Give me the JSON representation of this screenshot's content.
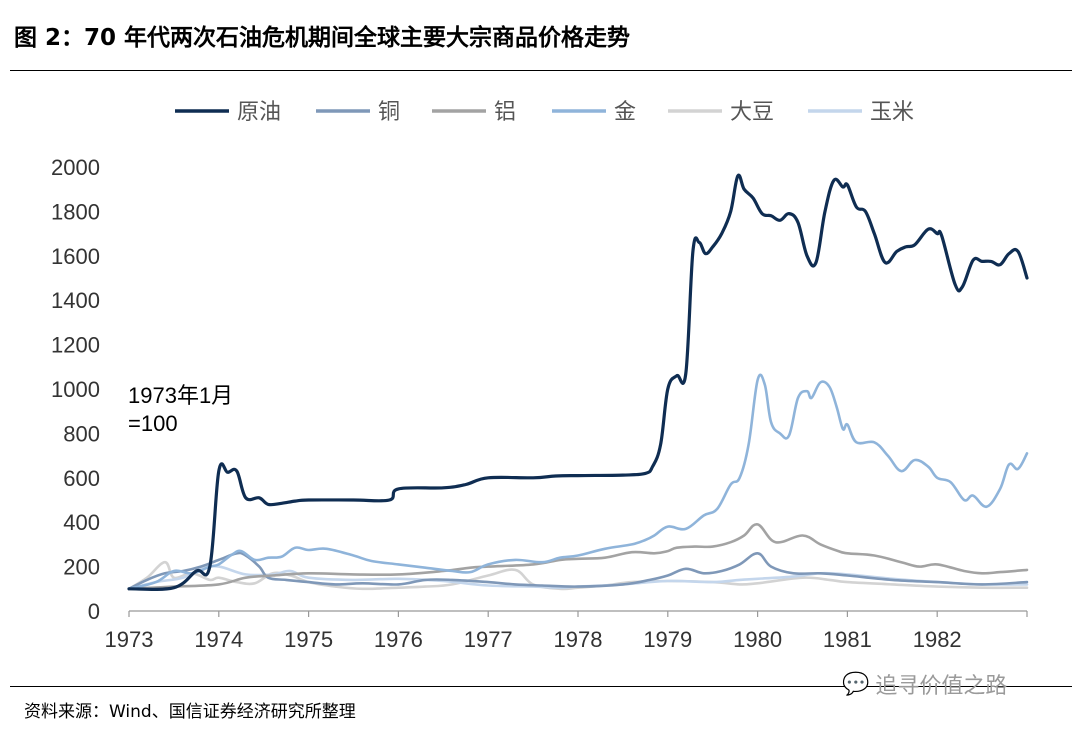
{
  "header": {
    "title": "图 2：70 年代两次石油危机期间全球主要大宗商品价格走势"
  },
  "footer": {
    "source": "资料来源：Wind、国信证券经济研究所整理",
    "watermark": "追寻价值之路",
    "watermark_icon": "wechat-icon"
  },
  "annotation": {
    "line1": "1973年1月",
    "line2": "=100"
  },
  "chart_data": {
    "type": "line",
    "title": "",
    "xlabel": "",
    "ylabel": "",
    "xlim": [
      1973,
      1983
    ],
    "ylim": [
      0,
      2000
    ],
    "x_ticks": [
      "1973",
      "1974",
      "1975",
      "1976",
      "1977",
      "1978",
      "1979",
      "1980",
      "1981",
      "1982"
    ],
    "y_ticks": [
      "0",
      "200",
      "400",
      "600",
      "800",
      "1000",
      "1200",
      "1400",
      "1600",
      "1800",
      "2000"
    ],
    "grid": false,
    "legend_position": "top",
    "series": [
      {
        "name": "原油",
        "color": "#0f2d52",
        "points": [
          [
            1973.0,
            100
          ],
          [
            1973.5,
            105
          ],
          [
            1973.75,
            180
          ],
          [
            1973.9,
            200
          ],
          [
            1974.0,
            630
          ],
          [
            1974.1,
            625
          ],
          [
            1974.2,
            630
          ],
          [
            1974.3,
            510
          ],
          [
            1974.45,
            510
          ],
          [
            1974.55,
            480
          ],
          [
            1974.7,
            485
          ],
          [
            1974.85,
            495
          ],
          [
            1975.0,
            500
          ],
          [
            1975.5,
            500
          ],
          [
            1975.9,
            500
          ],
          [
            1976.0,
            550
          ],
          [
            1976.5,
            555
          ],
          [
            1976.75,
            570
          ],
          [
            1977.0,
            600
          ],
          [
            1977.5,
            600
          ],
          [
            1977.75,
            608
          ],
          [
            1978.0,
            610
          ],
          [
            1978.5,
            612
          ],
          [
            1978.75,
            620
          ],
          [
            1978.83,
            650
          ],
          [
            1978.92,
            750
          ],
          [
            1979.0,
            1000
          ],
          [
            1979.1,
            1060
          ],
          [
            1979.2,
            1070
          ],
          [
            1979.28,
            1620
          ],
          [
            1979.35,
            1660
          ],
          [
            1979.42,
            1610
          ],
          [
            1979.5,
            1640
          ],
          [
            1979.6,
            1700
          ],
          [
            1979.7,
            1800
          ],
          [
            1979.78,
            1960
          ],
          [
            1979.85,
            1900
          ],
          [
            1979.95,
            1860
          ],
          [
            1980.05,
            1790
          ],
          [
            1980.15,
            1780
          ],
          [
            1980.25,
            1760
          ],
          [
            1980.35,
            1790
          ],
          [
            1980.45,
            1750
          ],
          [
            1980.55,
            1600
          ],
          [
            1980.65,
            1570
          ],
          [
            1980.75,
            1800
          ],
          [
            1980.85,
            1940
          ],
          [
            1980.95,
            1910
          ],
          [
            1981.0,
            1920
          ],
          [
            1981.1,
            1820
          ],
          [
            1981.2,
            1800
          ],
          [
            1981.3,
            1700
          ],
          [
            1981.42,
            1570
          ],
          [
            1981.55,
            1620
          ],
          [
            1981.65,
            1640
          ],
          [
            1981.75,
            1650
          ],
          [
            1981.9,
            1720
          ],
          [
            1982.0,
            1700
          ],
          [
            1982.05,
            1690
          ],
          [
            1982.2,
            1470
          ],
          [
            1982.28,
            1460
          ],
          [
            1982.4,
            1580
          ],
          [
            1982.5,
            1575
          ],
          [
            1982.6,
            1575
          ],
          [
            1982.7,
            1560
          ],
          [
            1982.8,
            1610
          ],
          [
            1982.9,
            1620
          ],
          [
            1983.0,
            1500
          ]
        ]
      },
      {
        "name": "铜",
        "color": "#7f98b8",
        "points": [
          [
            1973.0,
            100
          ],
          [
            1973.2,
            140
          ],
          [
            1973.4,
            170
          ],
          [
            1973.6,
            180
          ],
          [
            1973.8,
            200
          ],
          [
            1974.0,
            230
          ],
          [
            1974.2,
            260
          ],
          [
            1974.3,
            250
          ],
          [
            1974.45,
            200
          ],
          [
            1974.55,
            150
          ],
          [
            1974.75,
            140
          ],
          [
            1975.0,
            130
          ],
          [
            1975.3,
            120
          ],
          [
            1975.6,
            125
          ],
          [
            1976.0,
            120
          ],
          [
            1976.3,
            140
          ],
          [
            1976.6,
            140
          ],
          [
            1977.0,
            130
          ],
          [
            1977.3,
            120
          ],
          [
            1977.6,
            115
          ],
          [
            1978.0,
            110
          ],
          [
            1978.5,
            120
          ],
          [
            1978.8,
            140
          ],
          [
            1979.0,
            160
          ],
          [
            1979.2,
            190
          ],
          [
            1979.4,
            170
          ],
          [
            1979.6,
            180
          ],
          [
            1979.8,
            210
          ],
          [
            1980.0,
            260
          ],
          [
            1980.15,
            200
          ],
          [
            1980.4,
            170
          ],
          [
            1980.7,
            170
          ],
          [
            1981.0,
            160
          ],
          [
            1981.5,
            140
          ],
          [
            1982.0,
            130
          ],
          [
            1982.5,
            120
          ],
          [
            1983.0,
            130
          ]
        ]
      },
      {
        "name": "铝",
        "color": "#a3a3a3",
        "points": [
          [
            1973.0,
            100
          ],
          [
            1973.5,
            110
          ],
          [
            1974.0,
            120
          ],
          [
            1974.3,
            150
          ],
          [
            1974.6,
            160
          ],
          [
            1975.0,
            170
          ],
          [
            1975.5,
            165
          ],
          [
            1976.0,
            165
          ],
          [
            1976.5,
            180
          ],
          [
            1976.8,
            195
          ],
          [
            1977.0,
            200
          ],
          [
            1977.5,
            210
          ],
          [
            1977.8,
            230
          ],
          [
            1978.0,
            235
          ],
          [
            1978.3,
            240
          ],
          [
            1978.6,
            265
          ],
          [
            1978.85,
            260
          ],
          [
            1979.0,
            270
          ],
          [
            1979.1,
            285
          ],
          [
            1979.3,
            290
          ],
          [
            1979.5,
            290
          ],
          [
            1979.7,
            310
          ],
          [
            1979.85,
            340
          ],
          [
            1980.0,
            390
          ],
          [
            1980.2,
            310
          ],
          [
            1980.5,
            340
          ],
          [
            1980.7,
            300
          ],
          [
            1980.9,
            270
          ],
          [
            1981.0,
            260
          ],
          [
            1981.3,
            250
          ],
          [
            1981.6,
            220
          ],
          [
            1981.8,
            200
          ],
          [
            1982.0,
            210
          ],
          [
            1982.3,
            180
          ],
          [
            1982.5,
            170
          ],
          [
            1982.7,
            175
          ],
          [
            1983.0,
            185
          ]
        ]
      },
      {
        "name": "金",
        "color": "#8fb4da",
        "points": [
          [
            1973.0,
            100
          ],
          [
            1973.3,
            130
          ],
          [
            1973.5,
            180
          ],
          [
            1973.7,
            170
          ],
          [
            1973.9,
            200
          ],
          [
            1974.0,
            210
          ],
          [
            1974.15,
            255
          ],
          [
            1974.25,
            270
          ],
          [
            1974.4,
            230
          ],
          [
            1974.55,
            240
          ],
          [
            1974.7,
            245
          ],
          [
            1974.85,
            285
          ],
          [
            1975.0,
            275
          ],
          [
            1975.2,
            280
          ],
          [
            1975.5,
            250
          ],
          [
            1975.7,
            225
          ],
          [
            1976.0,
            210
          ],
          [
            1976.3,
            195
          ],
          [
            1976.6,
            180
          ],
          [
            1976.8,
            175
          ],
          [
            1977.0,
            210
          ],
          [
            1977.3,
            230
          ],
          [
            1977.6,
            220
          ],
          [
            1977.8,
            240
          ],
          [
            1978.0,
            250
          ],
          [
            1978.3,
            280
          ],
          [
            1978.6,
            300
          ],
          [
            1978.75,
            320
          ],
          [
            1978.85,
            340
          ],
          [
            1979.0,
            380
          ],
          [
            1979.2,
            370
          ],
          [
            1979.4,
            430
          ],
          [
            1979.55,
            460
          ],
          [
            1979.7,
            570
          ],
          [
            1979.8,
            600
          ],
          [
            1979.9,
            750
          ],
          [
            1980.0,
            1040
          ],
          [
            1980.08,
            1020
          ],
          [
            1980.15,
            850
          ],
          [
            1980.25,
            800
          ],
          [
            1980.35,
            790
          ],
          [
            1980.45,
            960
          ],
          [
            1980.55,
            990
          ],
          [
            1980.6,
            960
          ],
          [
            1980.7,
            1030
          ],
          [
            1980.8,
            1010
          ],
          [
            1980.88,
            920
          ],
          [
            1980.95,
            820
          ],
          [
            1981.0,
            840
          ],
          [
            1981.1,
            760
          ],
          [
            1981.3,
            760
          ],
          [
            1981.45,
            700
          ],
          [
            1981.6,
            630
          ],
          [
            1981.75,
            680
          ],
          [
            1981.9,
            650
          ],
          [
            1982.0,
            600
          ],
          [
            1982.15,
            580
          ],
          [
            1982.3,
            500
          ],
          [
            1982.4,
            520
          ],
          [
            1982.55,
            470
          ],
          [
            1982.7,
            550
          ],
          [
            1982.8,
            660
          ],
          [
            1982.9,
            640
          ],
          [
            1983.0,
            710
          ]
        ]
      },
      {
        "name": "大豆",
        "color": "#d3d3d3",
        "points": [
          [
            1973.0,
            100
          ],
          [
            1973.2,
            150
          ],
          [
            1973.4,
            220
          ],
          [
            1973.5,
            150
          ],
          [
            1973.7,
            170
          ],
          [
            1973.9,
            140
          ],
          [
            1974.0,
            150
          ],
          [
            1974.2,
            130
          ],
          [
            1974.4,
            125
          ],
          [
            1974.6,
            170
          ],
          [
            1974.8,
            160
          ],
          [
            1975.0,
            130
          ],
          [
            1975.3,
            110
          ],
          [
            1975.6,
            100
          ],
          [
            1976.0,
            105
          ],
          [
            1976.3,
            110
          ],
          [
            1976.6,
            120
          ],
          [
            1977.0,
            160
          ],
          [
            1977.3,
            185
          ],
          [
            1977.5,
            120
          ],
          [
            1977.8,
            100
          ],
          [
            1978.0,
            105
          ],
          [
            1978.3,
            115
          ],
          [
            1978.6,
            130
          ],
          [
            1979.0,
            135
          ],
          [
            1979.5,
            130
          ],
          [
            1979.8,
            120
          ],
          [
            1980.0,
            125
          ],
          [
            1980.5,
            150
          ],
          [
            1980.8,
            140
          ],
          [
            1981.0,
            130
          ],
          [
            1981.5,
            120
          ],
          [
            1982.0,
            110
          ],
          [
            1982.5,
            105
          ],
          [
            1983.0,
            105
          ]
        ]
      },
      {
        "name": "玉米",
        "color": "#c4d6ec",
        "points": [
          [
            1973.0,
            100
          ],
          [
            1973.3,
            130
          ],
          [
            1973.6,
            150
          ],
          [
            1973.8,
            190
          ],
          [
            1974.0,
            200
          ],
          [
            1974.3,
            165
          ],
          [
            1974.6,
            165
          ],
          [
            1974.8,
            180
          ],
          [
            1975.0,
            150
          ],
          [
            1975.5,
            140
          ],
          [
            1976.0,
            145
          ],
          [
            1976.5,
            135
          ],
          [
            1977.0,
            115
          ],
          [
            1977.5,
            110
          ],
          [
            1977.8,
            105
          ],
          [
            1978.0,
            110
          ],
          [
            1978.5,
            120
          ],
          [
            1979.0,
            135
          ],
          [
            1979.5,
            130
          ],
          [
            1979.8,
            140
          ],
          [
            1980.0,
            145
          ],
          [
            1980.4,
            155
          ],
          [
            1980.7,
            170
          ],
          [
            1981.0,
            165
          ],
          [
            1981.5,
            145
          ],
          [
            1982.0,
            130
          ],
          [
            1982.5,
            120
          ],
          [
            1983.0,
            120
          ]
        ]
      }
    ]
  }
}
